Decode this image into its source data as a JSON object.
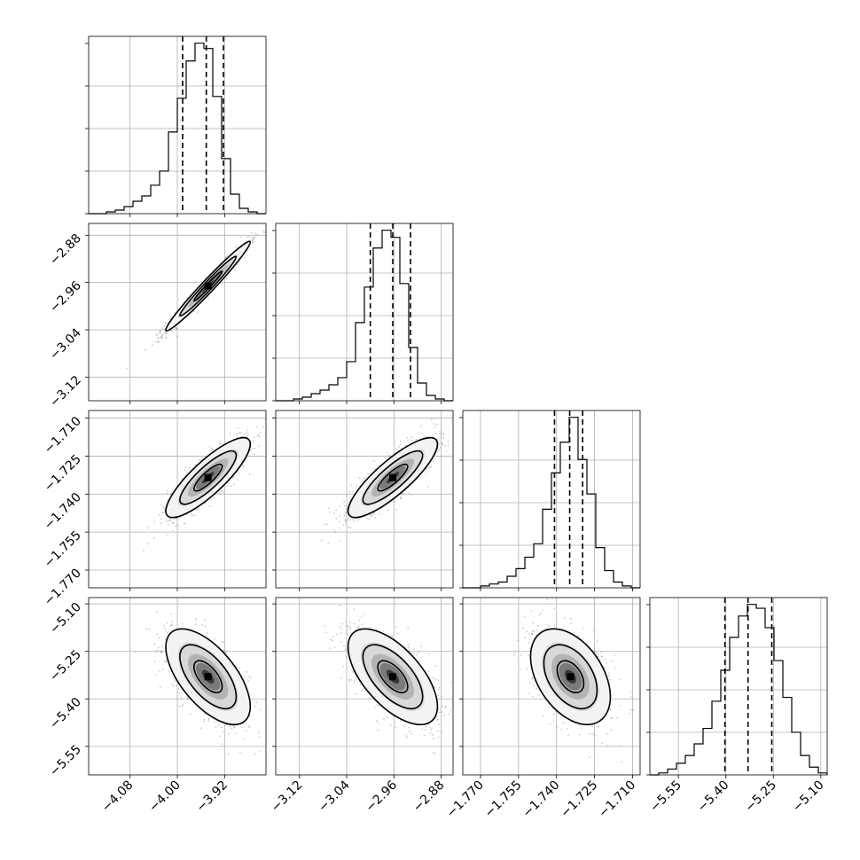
{
  "chart_data": {
    "type": "corner",
    "parameters": [
      {
        "id": "p0",
        "range": [
          -4.15,
          -3.85
        ],
        "ticks": [
          -4.08,
          -4.0,
          -3.92
        ],
        "tick_labels": [
          "−4.08",
          "−4.00",
          "−3.92"
        ],
        "quantiles": [
          -3.991,
          -3.951,
          -3.922
        ],
        "histogram": [
          0,
          0,
          1,
          2,
          4,
          7,
          10,
          16,
          24,
          46,
          65,
          86,
          96,
          93,
          66,
          31,
          11,
          3,
          1,
          0
        ],
        "hist_edges": [
          -4.15,
          -3.85
        ]
      },
      {
        "id": "p1",
        "range": [
          -3.16,
          -2.86
        ],
        "ticks": [
          -3.12,
          -3.04,
          -2.96,
          -2.88
        ],
        "tick_labels": [
          "−3.12",
          "−3.04",
          "−2.96",
          "−2.88"
        ],
        "quantiles": [
          -3.0,
          -2.962,
          -2.932
        ],
        "histogram": [
          0,
          0,
          1,
          2,
          4,
          6,
          9,
          13,
          22,
          44,
          64,
          86,
          96,
          92,
          66,
          30,
          10,
          3,
          1,
          0
        ],
        "hist_edges": [
          -3.16,
          -2.86
        ]
      },
      {
        "id": "p2",
        "range": [
          -1.777,
          -1.707
        ],
        "ticks": [
          -1.77,
          -1.755,
          -1.74,
          -1.725,
          -1.71
        ],
        "tick_labels": [
          "−1.770",
          "−1.755",
          "−1.740",
          "−1.725",
          "−1.710"
        ],
        "quantiles": [
          -1.7408,
          -1.7348,
          -1.7297
        ],
        "histogram": [
          0,
          0,
          1,
          2,
          3,
          6,
          10,
          16,
          23,
          41,
          60,
          76,
          89,
          67,
          49,
          21,
          9,
          3,
          1,
          0
        ],
        "hist_edges": [
          -1.777,
          -1.707
        ]
      },
      {
        "id": "p3",
        "range": [
          -5.64,
          -5.08
        ],
        "ticks": [
          -5.55,
          -5.4,
          -5.25,
          -5.1
        ],
        "tick_labels": [
          "−5.55",
          "−5.40",
          "−5.25",
          "−5.10"
        ],
        "quantiles": [
          -5.403,
          -5.33,
          -5.255
        ],
        "histogram": [
          0,
          1,
          3,
          6,
          10,
          16,
          24,
          38,
          54,
          71,
          82,
          88,
          86,
          76,
          59,
          40,
          22,
          10,
          4,
          1
        ],
        "hist_edges": [
          -5.64,
          -5.08
        ]
      }
    ],
    "pairs": [
      {
        "x": "p0",
        "y": "p1",
        "center": [
          -3.948,
          -2.966
        ],
        "sd": [
          0.034,
          0.036
        ],
        "corr": 0.98
      },
      {
        "x": "p0",
        "y": "p2",
        "center": [
          -3.948,
          -1.7335
        ],
        "sd": [
          0.034,
          0.0075
        ],
        "corr": 0.84
      },
      {
        "x": "p1",
        "y": "p2",
        "center": [
          -2.962,
          -1.7335
        ],
        "sd": [
          0.036,
          0.0075
        ],
        "corr": 0.84
      },
      {
        "x": "p0",
        "y": "p3",
        "center": [
          -3.948,
          -5.33
        ],
        "sd": [
          0.034,
          0.072
        ],
        "corr": -0.62
      },
      {
        "x": "p1",
        "y": "p3",
        "center": [
          -2.962,
          -5.33
        ],
        "sd": [
          0.036,
          0.072
        ],
        "corr": -0.62
      },
      {
        "x": "p2",
        "y": "p3",
        "center": [
          -1.7345,
          -5.33
        ],
        "sd": [
          0.0075,
          0.072
        ],
        "corr": -0.42
      }
    ],
    "contour_levels": [
      0.5,
      1.0,
      1.5
    ],
    "grid": true,
    "colors": {
      "line": "#000000",
      "grid": "#b0b0b0",
      "points": "#6e6e6e"
    }
  }
}
